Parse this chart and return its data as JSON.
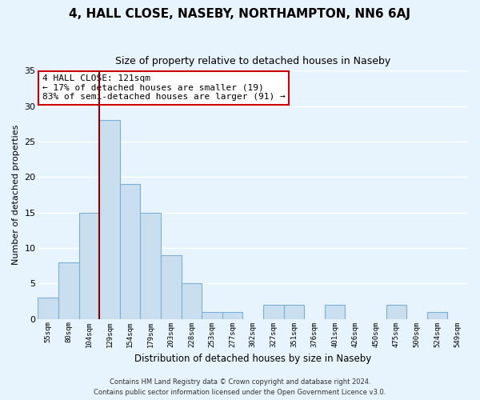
{
  "title": "4, HALL CLOSE, NASEBY, NORTHAMPTON, NN6 6AJ",
  "subtitle": "Size of property relative to detached houses in Naseby",
  "xlabel": "Distribution of detached houses by size in Naseby",
  "ylabel": "Number of detached properties",
  "bar_color": "#c9dff0",
  "bar_edge_color": "#7bafd4",
  "bin_labels": [
    "55sqm",
    "80sqm",
    "104sqm",
    "129sqm",
    "154sqm",
    "179sqm",
    "203sqm",
    "228sqm",
    "253sqm",
    "277sqm",
    "302sqm",
    "327sqm",
    "351sqm",
    "376sqm",
    "401sqm",
    "426sqm",
    "450sqm",
    "475sqm",
    "500sqm",
    "524sqm",
    "549sqm"
  ],
  "bin_values": [
    3,
    8,
    15,
    28,
    19,
    15,
    9,
    5,
    1,
    1,
    0,
    2,
    2,
    0,
    2,
    0,
    0,
    2,
    0,
    1,
    0
  ],
  "ylim": [
    0,
    35
  ],
  "yticks": [
    0,
    5,
    10,
    15,
    20,
    25,
    30,
    35
  ],
  "vline_color": "#8b0000",
  "annotation_text": "4 HALL CLOSE: 121sqm\n← 17% of detached houses are smaller (19)\n83% of semi-detached houses are larger (91) →",
  "annotation_box_color": "#ffffff",
  "annotation_box_edge": "#cc0000",
  "footer_line1": "Contains HM Land Registry data © Crown copyright and database right 2024.",
  "footer_line2": "Contains public sector information licensed under the Open Government Licence v3.0.",
  "background_color": "#e8f4fd",
  "grid_color": "#ffffff"
}
